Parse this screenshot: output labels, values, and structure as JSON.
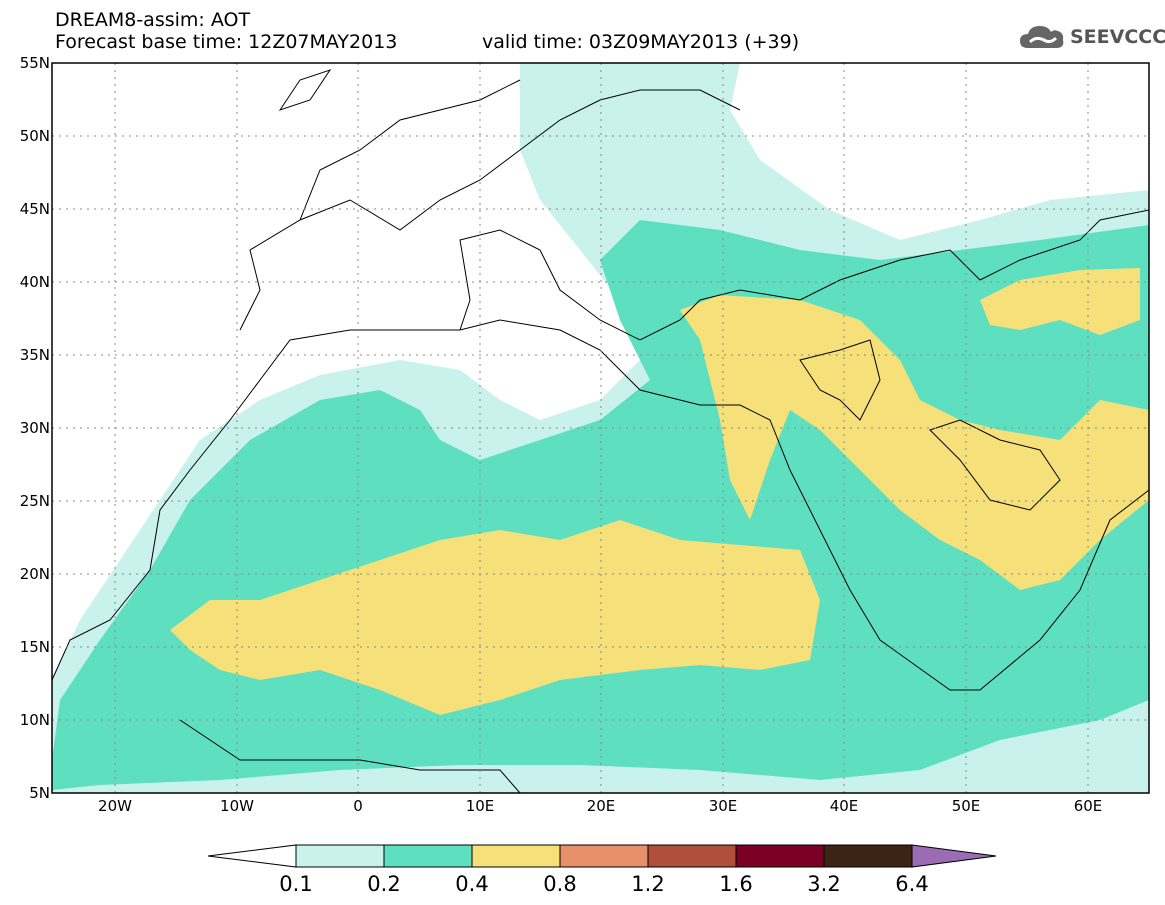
{
  "header": {
    "title_line_1": "DREAM8-assim: AOT",
    "base_time": "Forecast base time: 12Z07MAY2013",
    "valid_time": "valid time: 03Z09MAY2013 (+39)"
  },
  "logo": {
    "text": "SEEVCCC",
    "icon": "cloud-icon"
  },
  "axes": {
    "lat_labels": [
      "55N",
      "50N",
      "45N",
      "40N",
      "35N",
      "30N",
      "25N",
      "20N",
      "15N",
      "10N",
      "5N"
    ],
    "lon_labels": [
      "20W",
      "10W",
      "0",
      "10E",
      "20E",
      "30E",
      "40E",
      "50E",
      "60E"
    ],
    "lon_range": [
      -25,
      65
    ],
    "lat_range": [
      5,
      55
    ]
  },
  "legend": {
    "values": [
      "0.1",
      "0.2",
      "0.4",
      "0.8",
      "1.2",
      "1.6",
      "3.2",
      "6.4"
    ],
    "colors": [
      "#c9f2ec",
      "#5ee0c0",
      "#f5e07a",
      "#e8906a",
      "#b0503c",
      "#7a0026",
      "#3c2414",
      "#9a6cb4"
    ]
  }
}
